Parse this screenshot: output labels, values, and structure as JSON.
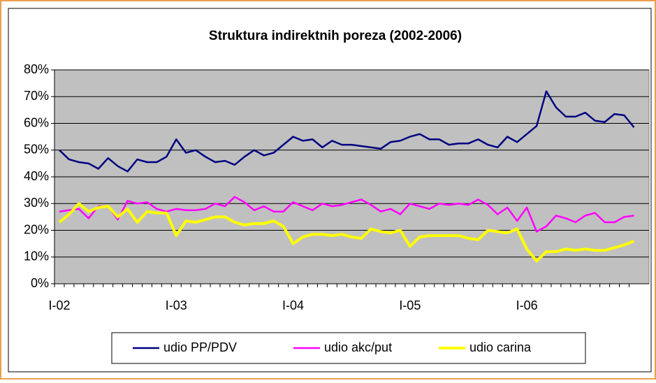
{
  "chart_data": {
    "type": "line",
    "title": "Struktura indirektnih poreza (2002-2006)",
    "categories": [
      "I-02",
      null,
      null,
      null,
      null,
      null,
      null,
      null,
      null,
      null,
      null,
      null,
      "I-03",
      null,
      null,
      null,
      null,
      null,
      null,
      null,
      null,
      null,
      null,
      null,
      "I-04",
      null,
      null,
      null,
      null,
      null,
      null,
      null,
      null,
      null,
      null,
      null,
      "I-05",
      null,
      null,
      null,
      null,
      null,
      null,
      null,
      null,
      null,
      null,
      null,
      "I-06",
      null,
      null,
      null,
      null,
      null,
      null,
      null,
      null,
      null,
      null,
      null
    ],
    "ylim": [
      0,
      80
    ],
    "yticks": [
      {
        "value": 0,
        "label": "0%"
      },
      {
        "value": 10,
        "label": "10%"
      },
      {
        "value": 20,
        "label": "20%"
      },
      {
        "value": 30,
        "label": "30%"
      },
      {
        "value": 40,
        "label": "40%"
      },
      {
        "value": 50,
        "label": "50%"
      },
      {
        "value": 60,
        "label": "60%"
      },
      {
        "value": 70,
        "label": "70%"
      },
      {
        "value": 80,
        "label": "80%"
      }
    ],
    "grid": true,
    "legend": "bottom",
    "series": [
      {
        "name": "udio PP/PDV",
        "color": "#000080",
        "values": [
          50,
          46.5,
          45.5,
          45,
          43,
          47,
          44,
          42,
          46.5,
          45.5,
          45.5,
          47.5,
          54,
          49,
          50,
          47.5,
          45.5,
          46,
          44.5,
          47.5,
          50,
          48,
          49,
          52,
          55,
          53.5,
          54,
          51,
          53.5,
          52,
          52,
          51.5,
          51,
          50.5,
          53,
          53.5,
          55,
          56,
          54,
          54,
          52,
          52.5,
          52.5,
          54,
          52,
          51,
          55,
          53,
          56,
          59,
          72,
          66,
          62.5,
          62.5,
          64,
          61,
          60.5,
          63.5,
          63,
          58.5
        ]
      },
      {
        "name": "udio akc/put",
        "color": "#ff00ff",
        "values": [
          27,
          27.5,
          28,
          24.5,
          29,
          29,
          24,
          31,
          30,
          30.5,
          28,
          27,
          28,
          27.5,
          27.5,
          28,
          30,
          29,
          32.5,
          30.5,
          27.5,
          29,
          27,
          27,
          30.5,
          29,
          27.5,
          30,
          29,
          29.5,
          30.5,
          31.5,
          29.5,
          27,
          28,
          26,
          30,
          29,
          28,
          30,
          29.5,
          30,
          29.5,
          31.5,
          29.5,
          26,
          28.5,
          23.5,
          28.5,
          19.5,
          21.5,
          25.5,
          24.5,
          23,
          25.5,
          26.5,
          23,
          23,
          25,
          25.5
        ]
      },
      {
        "name": "udio carina",
        "color": "#ffff00",
        "values": [
          23,
          26,
          30,
          27,
          28.5,
          29,
          25,
          28,
          23,
          27,
          26.5,
          26.5,
          18,
          23.5,
          23,
          24,
          25,
          25,
          23,
          22,
          22.5,
          22.5,
          23.5,
          21.5,
          15,
          17.5,
          18.5,
          18.5,
          18,
          18.5,
          17.5,
          17,
          20.5,
          19.5,
          19,
          20,
          14,
          17.5,
          18,
          18,
          18,
          18,
          17,
          16.5,
          20,
          19.5,
          19,
          20.5,
          13,
          8.5,
          12,
          12,
          13,
          12.5,
          13,
          12.5,
          12.5,
          13.5,
          14.5,
          16
        ]
      }
    ]
  }
}
